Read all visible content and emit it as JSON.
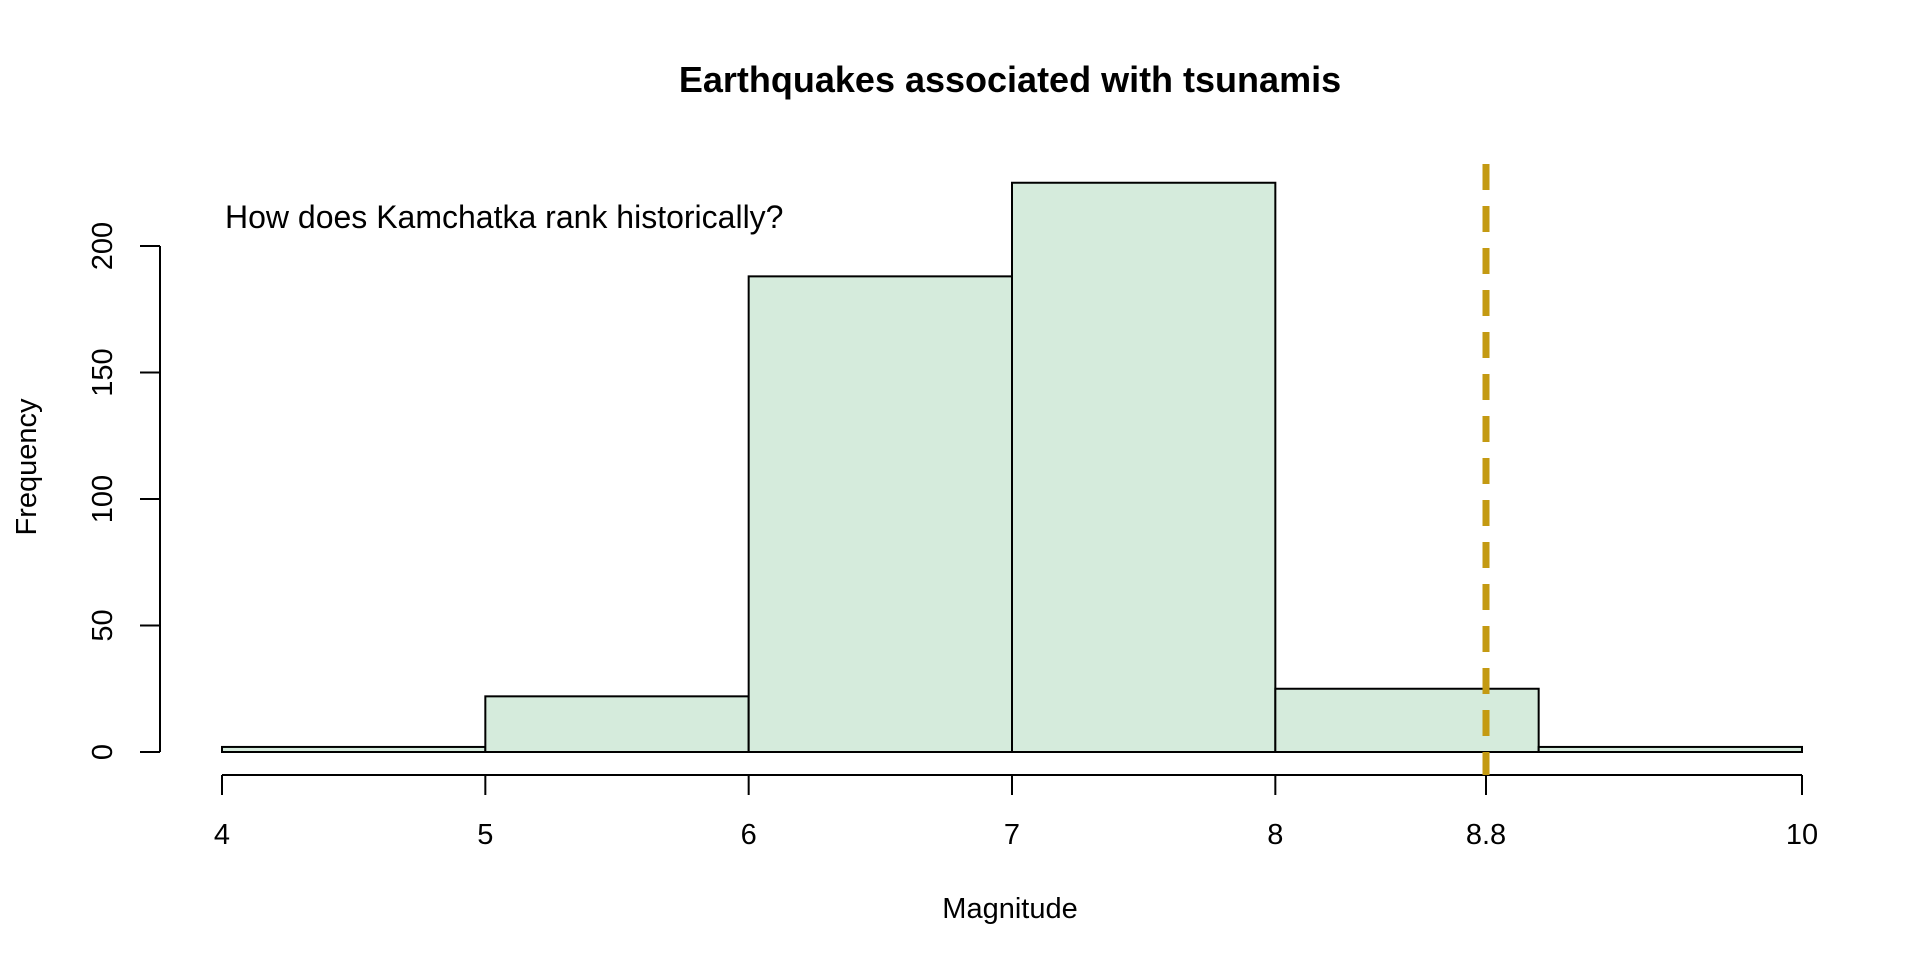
{
  "chart_data": {
    "type": "bar",
    "subtype": "histogram",
    "title": "Earthquakes associated with tsunamis",
    "xlabel": "Magnitude",
    "ylabel": "Frequency",
    "annotation": "How does Kamchatka rank historically?",
    "bins": [
      {
        "from": 4,
        "to": 5,
        "count": 2
      },
      {
        "from": 5,
        "to": 6,
        "count": 22
      },
      {
        "from": 6,
        "to": 7,
        "count": 188
      },
      {
        "from": 7,
        "to": 8,
        "count": 225
      },
      {
        "from": 8,
        "to": 9,
        "count": 25
      },
      {
        "from": 9,
        "to": 10,
        "count": 2
      }
    ],
    "xlim": [
      4,
      10
    ],
    "ylim": [
      0,
      225
    ],
    "x_ticks": [
      4,
      5,
      6,
      7,
      8,
      8.8,
      10
    ],
    "x_tick_labels": [
      "4",
      "5",
      "6",
      "7",
      "8",
      "8.8",
      "10"
    ],
    "y_ticks": [
      0,
      50,
      100,
      150,
      200
    ],
    "y_tick_labels": [
      "0",
      "50",
      "100",
      "150",
      "200"
    ],
    "reference_line": {
      "x": 8.8,
      "style": "dashed",
      "color": "#C49A12"
    },
    "bar_color": "#D5EBDC",
    "grid": false,
    "legend": "none"
  }
}
